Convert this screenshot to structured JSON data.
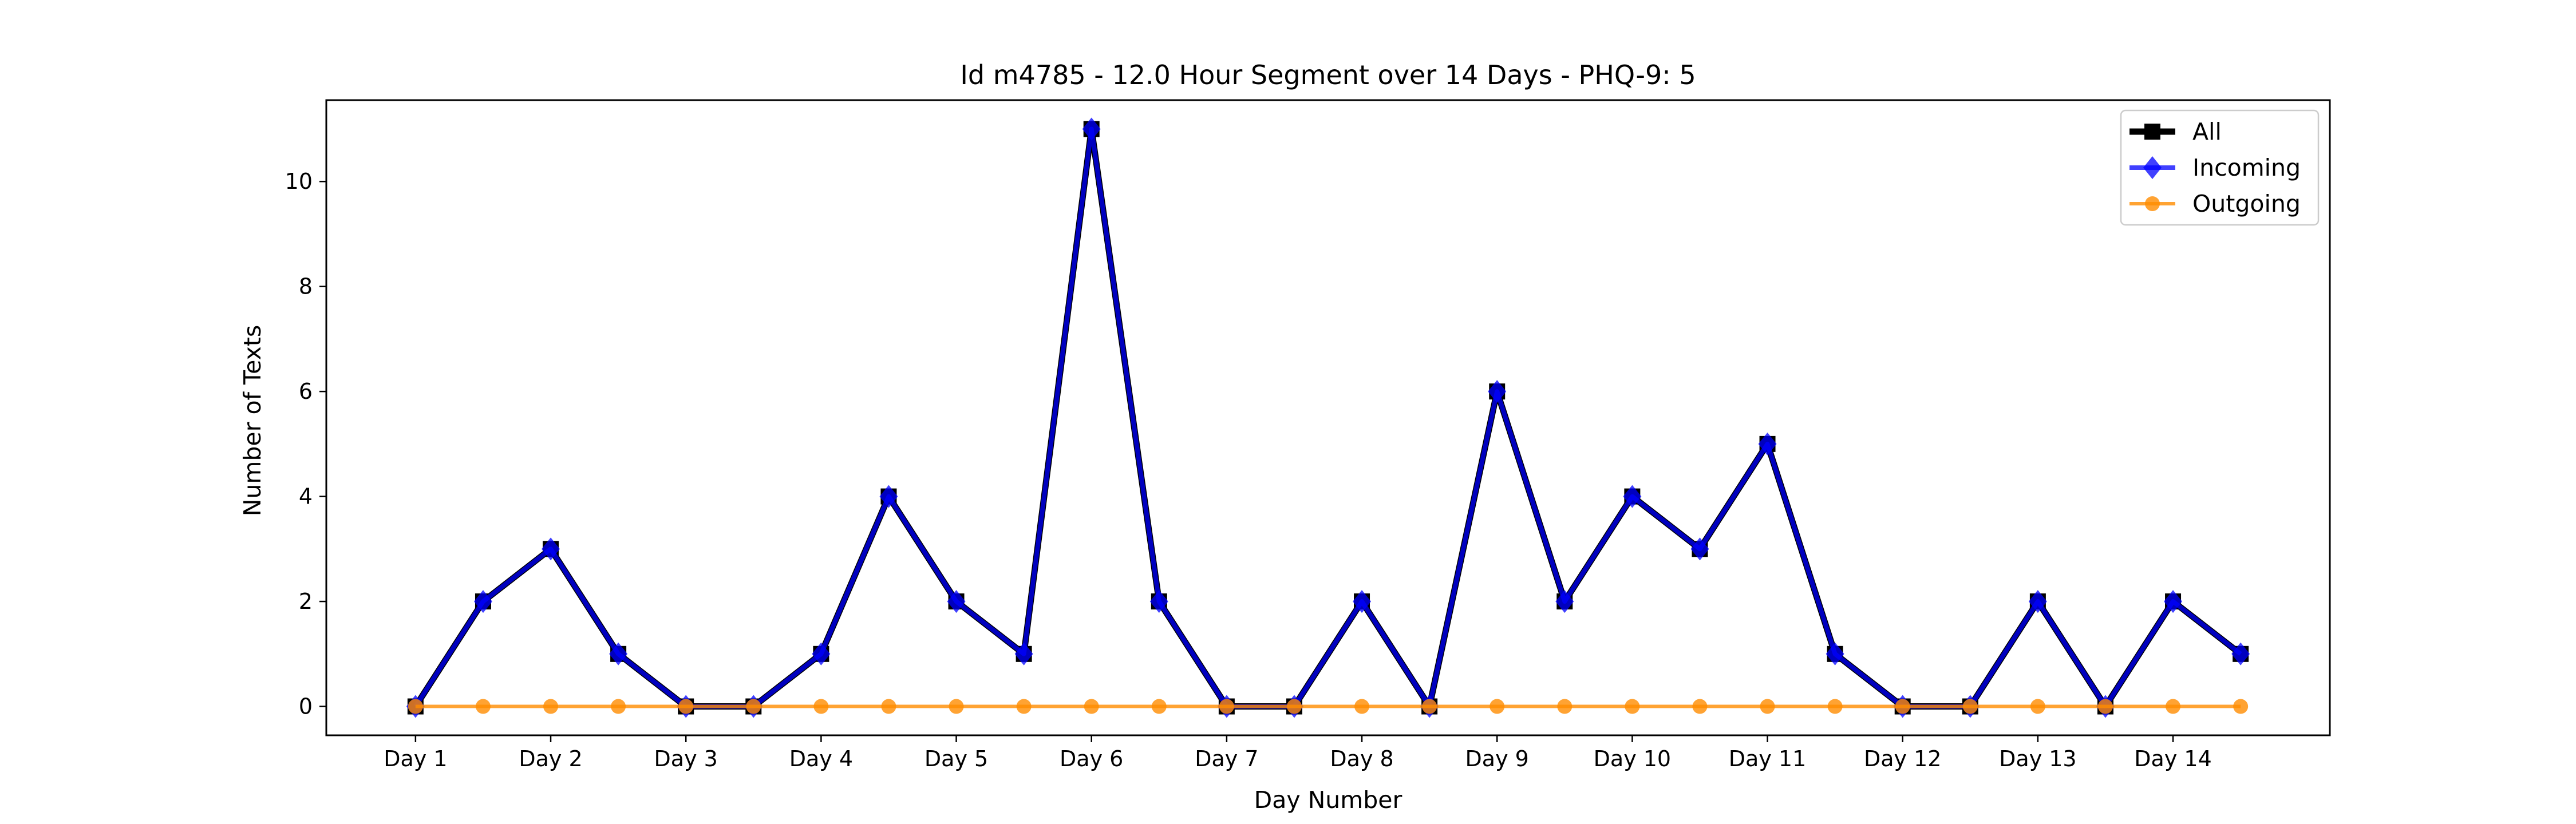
{
  "chart_data": {
    "type": "line",
    "title": "Id m4785 - 12.0 Hour Segment over 14 Days - PHQ-9: 5",
    "xlabel": "Day Number",
    "ylabel": "Number of Texts",
    "x_tick_labels": [
      "Day 1",
      "Day 2",
      "Day 3",
      "Day 4",
      "Day 5",
      "Day 6",
      "Day 7",
      "Day 8",
      "Day 9",
      "Day 10",
      "Day 11",
      "Day 12",
      "Day 13",
      "Day 14"
    ],
    "y_ticks": [
      0,
      2,
      4,
      6,
      8,
      10
    ],
    "ylim": [
      -0.55,
      11.55
    ],
    "legend_position": "top-right",
    "grid": false,
    "x": [
      1,
      1.5,
      2,
      2.5,
      3,
      3.5,
      4,
      4.5,
      5,
      5.5,
      6,
      6.5,
      7,
      7.5,
      8,
      8.5,
      9,
      9.5,
      10,
      10.5,
      11,
      11.5,
      12,
      12.5,
      13,
      13.5,
      14,
      14.5
    ],
    "series": [
      {
        "name": "All",
        "color": "#000000",
        "marker": "square",
        "values": [
          0,
          2,
          3,
          1,
          0,
          0,
          1,
          4,
          2,
          1,
          11,
          2,
          0,
          0,
          2,
          0,
          6,
          2,
          4,
          3,
          5,
          1,
          0,
          0,
          2,
          0,
          2,
          1
        ]
      },
      {
        "name": "Incoming",
        "color": "#0000ff",
        "marker": "diamond",
        "values": [
          0,
          2,
          3,
          1,
          0,
          0,
          1,
          4,
          2,
          1,
          11,
          2,
          0,
          0,
          2,
          0,
          6,
          2,
          4,
          3,
          5,
          1,
          0,
          0,
          2,
          0,
          2,
          1
        ]
      },
      {
        "name": "Outgoing",
        "color": "#ff8c00",
        "marker": "circle",
        "values": [
          0,
          0,
          0,
          0,
          0,
          0,
          0,
          0,
          0,
          0,
          0,
          0,
          0,
          0,
          0,
          0,
          0,
          0,
          0,
          0,
          0,
          0,
          0,
          0,
          0,
          0,
          0,
          0
        ]
      }
    ]
  }
}
